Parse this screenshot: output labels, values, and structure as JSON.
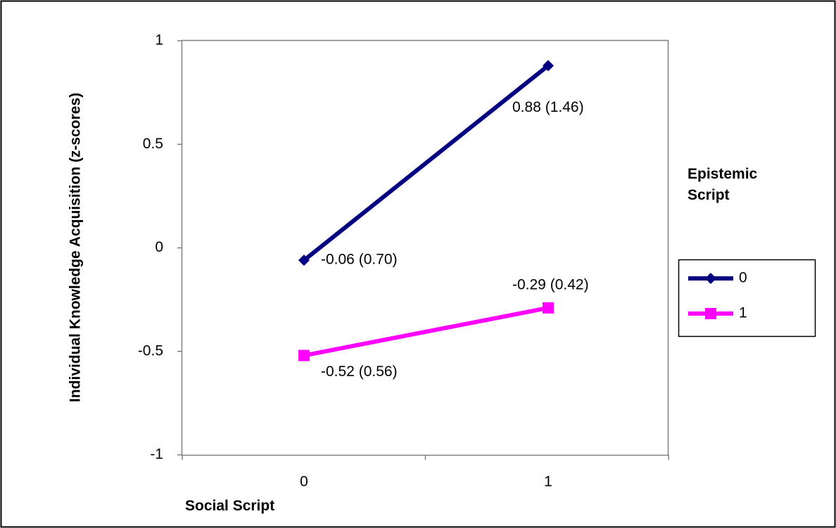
{
  "chart_data": {
    "type": "line",
    "title": "",
    "xlabel": "Social Script",
    "ylabel": "Individual Knowledge Acquisition (z-scores)",
    "x": [
      0,
      1
    ],
    "x_tick_labels": [
      "0",
      "1"
    ],
    "ylim": [
      -1,
      1
    ],
    "y_ticks": [
      1,
      0.5,
      0,
      -0.5,
      -1
    ],
    "y_tick_labels": [
      "1",
      "0.5",
      "0",
      "-0.5",
      "-1"
    ],
    "grid": false,
    "legend": {
      "title": "Epistemic Script",
      "title_lines": [
        "Epistemic",
        "Script"
      ],
      "placement": "right"
    },
    "series": [
      {
        "name": "0",
        "values": [
          -0.06,
          0.88
        ],
        "labels": [
          "-0.06 (0.70)",
          "0.88 (1.46)"
        ],
        "color": "#000080",
        "marker": "diamond"
      },
      {
        "name": "1",
        "values": [
          -0.52,
          -0.29
        ],
        "labels": [
          "-0.52 (0.56)",
          "-0.29 (0.42)"
        ],
        "color": "#ff00ff",
        "marker": "square"
      }
    ]
  }
}
